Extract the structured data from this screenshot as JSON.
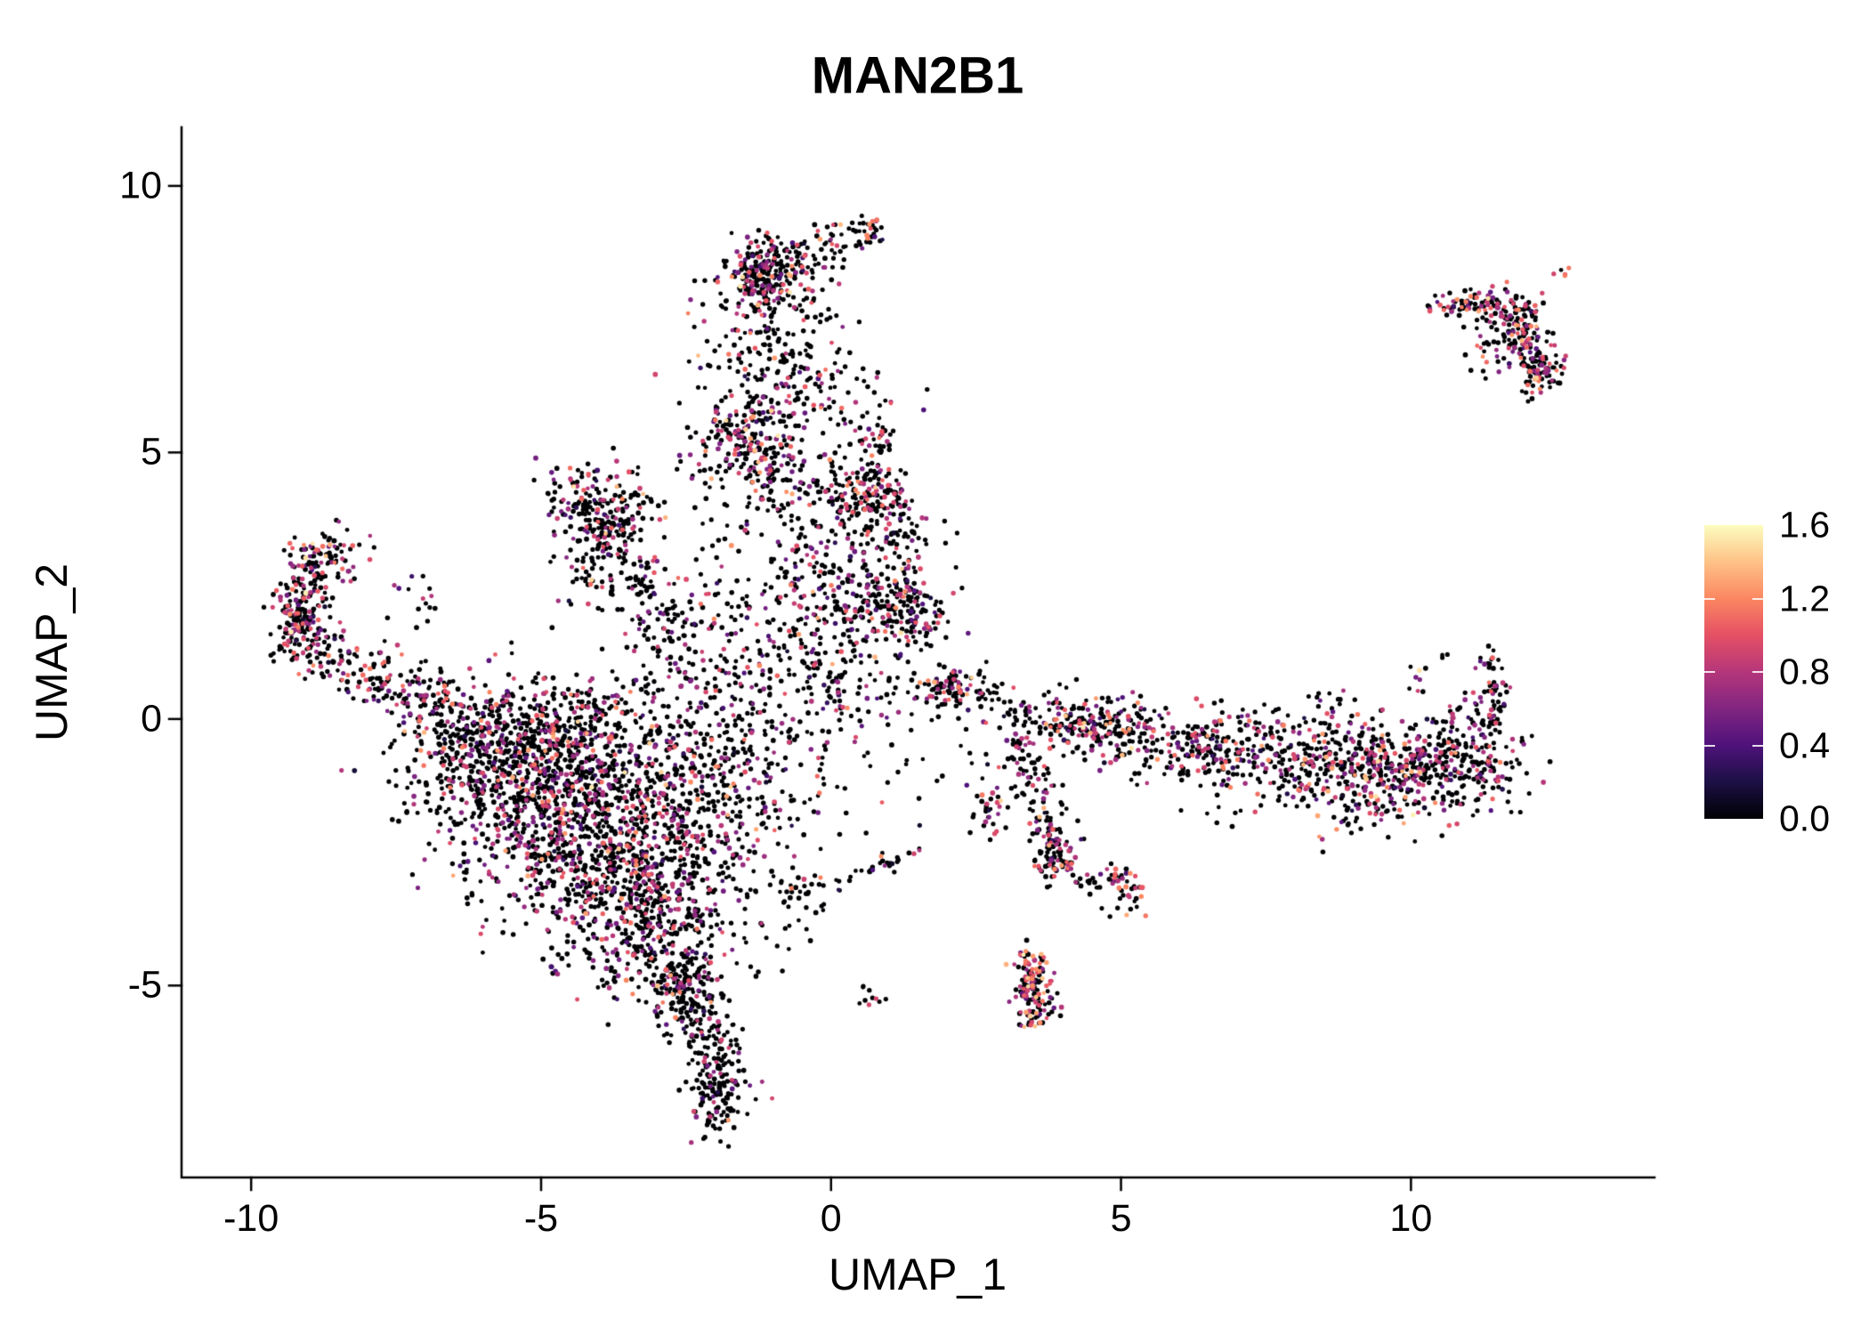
{
  "chart_data": {
    "type": "scatter",
    "title": "MAN2B1",
    "xlabel": "UMAP_1",
    "ylabel": "UMAP_2",
    "grid": false,
    "background": "#ffffff",
    "xlim": [
      -11.2,
      14.2
    ],
    "ylim": [
      -8.6,
      11.1
    ],
    "x_ticks": [
      "-10",
      "-5",
      "0",
      "5",
      "10"
    ],
    "y_ticks": [
      "-5",
      "0",
      "5",
      "10"
    ],
    "legend": {
      "position": "right",
      "tick_labels": [
        "0.0",
        "0.4",
        "0.8",
        "1.2",
        "1.6"
      ],
      "vmin": 0,
      "vmax": 1.6
    },
    "colormap_name": "magma",
    "colormap": [
      {
        "t": 0.0,
        "c": "#000004"
      },
      {
        "t": 0.125,
        "c": "#1c1044"
      },
      {
        "t": 0.25,
        "c": "#4f127b"
      },
      {
        "t": 0.375,
        "c": "#812581"
      },
      {
        "t": 0.5,
        "c": "#b5367a"
      },
      {
        "t": 0.625,
        "c": "#e55064"
      },
      {
        "t": 0.75,
        "c": "#fb8761"
      },
      {
        "t": 0.875,
        "c": "#fec287"
      },
      {
        "t": 1.0,
        "c": "#fcfdbf"
      }
    ],
    "point_radius": 2.6,
    "seed": 42,
    "default_expression": [
      0.3,
      0.74,
      0.27
    ],
    "clusters": [
      {
        "g": [
          -5.3,
          -1.0,
          1.0,
          0.8,
          650
        ]
      },
      {
        "g": [
          -4.3,
          -2.3,
          0.95,
          0.95,
          650
        ]
      },
      {
        "g": [
          -3.3,
          -3.7,
          0.65,
          0.75,
          380
        ]
      },
      {
        "g": [
          -6.2,
          -0.4,
          0.6,
          0.45,
          180
        ]
      },
      {
        "g": [
          -2.9,
          -1.3,
          0.75,
          0.8,
          280
        ]
      },
      {
        "g": [
          -4.6,
          0.0,
          0.9,
          0.4,
          200
        ]
      },
      {
        "l": [
          -2.7,
          -4.6,
          -2.0,
          -6.3,
          0.3,
          150
        ],
        "e": [
          0.22,
          0.7,
          0.25
        ]
      },
      {
        "g": [
          -1.95,
          -6.9,
          0.28,
          0.45,
          150
        ],
        "e": [
          0.22,
          0.75,
          0.25
        ]
      },
      {
        "g": [
          -2.5,
          -4.9,
          0.35,
          0.35,
          80
        ],
        "e": [
          0.25,
          0.7,
          0.25
        ]
      },
      {
        "l": [
          -6.6,
          0.3,
          -8.4,
          1.0,
          0.28,
          90
        ],
        "e": [
          0.35,
          0.8,
          0.3
        ]
      },
      {
        "l": [
          -8.4,
          1.0,
          -9.35,
          1.9,
          0.25,
          80
        ],
        "e": [
          0.35,
          0.8,
          0.3
        ]
      },
      {
        "l": [
          -9.4,
          1.9,
          -8.8,
          3.2,
          0.25,
          90
        ],
        "e": [
          0.35,
          0.8,
          0.3
        ]
      },
      {
        "g": [
          -9.2,
          1.6,
          0.25,
          0.3,
          60
        ],
        "e": [
          0.4,
          0.8,
          0.3
        ]
      },
      {
        "g": [
          -8.55,
          3.15,
          0.3,
          0.25,
          50
        ],
        "e": [
          0.35,
          0.8,
          0.3
        ]
      },
      {
        "g": [
          -7.3,
          0.6,
          0.5,
          0.35,
          40
        ],
        "e": [
          0.3,
          0.75,
          0.28
        ]
      },
      {
        "g": [
          -4.0,
          4.0,
          0.45,
          0.45,
          110
        ],
        "e": [
          0.3,
          0.78,
          0.3
        ]
      },
      {
        "l": [
          -4.55,
          4.5,
          -3.1,
          2.3,
          0.22,
          90
        ],
        "e": [
          0.3,
          0.78,
          0.3
        ]
      },
      {
        "l": [
          -4.4,
          2.5,
          -3.3,
          4.3,
          0.25,
          70
        ],
        "e": [
          0.3,
          0.78,
          0.3
        ]
      },
      {
        "g": [
          -3.6,
          3.2,
          0.7,
          0.7,
          70
        ],
        "e": [
          0.25,
          0.72,
          0.3
        ]
      },
      {
        "l": [
          -3.3,
          2.2,
          -2.5,
          1.2,
          0.3,
          50
        ],
        "e": [
          0.25,
          0.72,
          0.3
        ]
      },
      {
        "g": [
          -1.15,
          8.4,
          0.42,
          0.34,
          240
        ],
        "e": [
          0.35,
          0.8,
          0.3
        ]
      },
      {
        "l": [
          -0.4,
          9.0,
          0.75,
          9.2,
          0.15,
          30
        ],
        "e": [
          0.35,
          0.85,
          0.3
        ]
      },
      {
        "g": [
          0.72,
          9.15,
          0.15,
          0.12,
          20
        ],
        "e": [
          0.45,
          0.9,
          0.3
        ]
      },
      {
        "g": [
          -1.2,
          7.2,
          0.5,
          0.5,
          120
        ],
        "e": [
          0.3,
          0.76,
          0.3
        ]
      },
      {
        "g": [
          -1.45,
          5.3,
          0.5,
          0.55,
          210
        ],
        "e": [
          0.35,
          0.8,
          0.3
        ]
      },
      {
        "g": [
          -1.1,
          4.5,
          0.65,
          0.5,
          130
        ],
        "e": [
          0.3,
          0.76,
          0.3
        ]
      },
      {
        "g": [
          -0.6,
          6.3,
          0.4,
          0.5,
          60
        ],
        "e": [
          0.3,
          0.76,
          0.3
        ]
      },
      {
        "g": [
          0.55,
          4.15,
          0.42,
          0.38,
          170
        ],
        "e": [
          0.35,
          0.8,
          0.3
        ]
      },
      {
        "g": [
          0.8,
          1.95,
          0.55,
          0.33,
          150
        ],
        "e": [
          0.35,
          0.8,
          0.3
        ]
      },
      {
        "g": [
          0.1,
          2.9,
          0.75,
          0.6,
          130
        ],
        "e": [
          0.28,
          0.75,
          0.3
        ]
      },
      {
        "g": [
          -0.55,
          1.6,
          0.5,
          0.8,
          120
        ],
        "e": [
          0.28,
          0.72,
          0.3
        ]
      },
      {
        "g": [
          0.2,
          0.6,
          0.7,
          0.5,
          90
        ],
        "e": [
          0.25,
          0.72,
          0.3
        ]
      },
      {
        "g": [
          0.75,
          5.25,
          0.18,
          0.15,
          22
        ],
        "e": [
          0.5,
          0.95,
          0.3
        ]
      },
      {
        "g": [
          0.3,
          5.9,
          0.5,
          0.4,
          40
        ],
        "e": [
          0.3,
          0.75,
          0.3
        ]
      },
      {
        "g": [
          1.35,
          2.0,
          0.3,
          0.5,
          60
        ],
        "e": [
          0.3,
          0.75,
          0.3
        ]
      },
      {
        "g": [
          1.1,
          3.4,
          0.4,
          0.5,
          60
        ],
        "e": [
          0.3,
          0.75,
          0.3
        ]
      },
      {
        "g": [
          -2.1,
          0.3,
          0.85,
          0.8,
          200
        ],
        "e": [
          0.28,
          0.72,
          0.26
        ]
      },
      {
        "g": [
          -1.5,
          -1.6,
          0.7,
          0.95,
          160
        ],
        "e": [
          0.25,
          0.72,
          0.26
        ]
      },
      {
        "g": [
          -2.3,
          -3.1,
          0.5,
          0.7,
          100
        ],
        "e": [
          0.25,
          0.72,
          0.26
        ]
      },
      {
        "l": [
          1.75,
          0.7,
          3.3,
          0.15,
          0.22,
          80
        ],
        "e": [
          0.35,
          0.8,
          0.3
        ]
      },
      {
        "g": [
          2.05,
          0.6,
          0.2,
          0.15,
          40
        ],
        "e": [
          0.4,
          0.8,
          0.3
        ]
      },
      {
        "l": [
          3.3,
          0.15,
          5.2,
          -0.4,
          0.28,
          120
        ],
        "e": [
          0.35,
          0.8,
          0.3
        ]
      },
      {
        "g": [
          4.35,
          -0.15,
          0.3,
          0.22,
          60
        ],
        "e": [
          0.45,
          0.85,
          0.3
        ]
      },
      {
        "g": [
          5.05,
          -0.1,
          0.3,
          0.28,
          60
        ],
        "e": [
          0.4,
          0.8,
          0.3
        ]
      },
      {
        "l": [
          5.3,
          -0.5,
          8.3,
          -0.85,
          0.33,
          190
        ],
        "e": [
          0.35,
          0.8,
          0.3
        ]
      },
      {
        "g": [
          9.4,
          -0.9,
          0.85,
          0.42,
          420
        ],
        "e": [
          0.35,
          0.8,
          0.3
        ]
      },
      {
        "g": [
          10.9,
          -0.8,
          0.5,
          0.45,
          200
        ],
        "e": [
          0.35,
          0.8,
          0.3
        ]
      },
      {
        "l": [
          11.25,
          -0.35,
          11.45,
          0.75,
          0.14,
          55
        ],
        "e": [
          0.4,
          0.85,
          0.3
        ]
      },
      {
        "g": [
          11.4,
          0.95,
          0.12,
          0.15,
          15
        ],
        "e": [
          0.4,
          0.85,
          0.3
        ]
      },
      {
        "g": [
          7.6,
          -0.25,
          1.1,
          0.35,
          70
        ],
        "e": [
          0.25,
          0.72,
          0.3
        ]
      },
      {
        "g": [
          8.9,
          -1.75,
          0.9,
          0.3,
          50
        ],
        "e": [
          0.25,
          0.72,
          0.3
        ]
      },
      {
        "g": [
          6.3,
          -0.6,
          0.5,
          0.3,
          60
        ],
        "e": [
          0.35,
          0.8,
          0.3
        ]
      },
      {
        "g": [
          10.6,
          1.2,
          0.08,
          0.08,
          3
        ],
        "e": [
          0.3,
          0.8,
          0.3
        ]
      },
      {
        "g": [
          8.55,
          0.35,
          0.25,
          0.15,
          12
        ],
        "e": [
          0.3,
          0.8,
          0.3
        ]
      },
      {
        "l": [
          3.25,
          -0.3,
          3.75,
          -1.8,
          0.2,
          70
        ],
        "e": [
          0.35,
          0.8,
          0.3
        ]
      },
      {
        "l": [
          3.75,
          -1.8,
          3.95,
          -2.85,
          0.2,
          60
        ],
        "e": [
          0.4,
          0.85,
          0.3
        ]
      },
      {
        "g": [
          3.9,
          -2.6,
          0.22,
          0.3,
          50
        ],
        "e": [
          0.45,
          0.85,
          0.3
        ]
      },
      {
        "g": [
          5.05,
          -3.2,
          0.18,
          0.22,
          45
        ],
        "e": [
          0.5,
          0.9,
          0.3
        ]
      },
      {
        "l": [
          4.1,
          -2.95,
          4.85,
          -3.15,
          0.12,
          20
        ],
        "e": [
          0.3,
          0.8,
          0.3
        ]
      },
      {
        "g": [
          2.75,
          -1.6,
          0.15,
          0.3,
          30
        ],
        "e": [
          0.4,
          0.8,
          0.3
        ]
      },
      {
        "l": [
          -0.95,
          -3.35,
          1.55,
          -2.5,
          0.12,
          50
        ],
        "e": [
          0.3,
          0.75,
          0.3
        ]
      },
      {
        "g": [
          0.75,
          -5.2,
          0.12,
          0.1,
          10
        ],
        "e": [
          0.3,
          0.75,
          0.3
        ]
      },
      {
        "l": [
          3.38,
          -4.35,
          3.62,
          -5.75,
          0.16,
          120
        ],
        "e": [
          0.55,
          0.95,
          0.3
        ]
      },
      {
        "g": [
          3.5,
          -5.0,
          0.15,
          0.4,
          40
        ],
        "e": [
          0.55,
          0.95,
          0.3
        ]
      },
      {
        "g": [
          11.15,
          7.8,
          0.32,
          0.16,
          60
        ],
        "e": [
          0.4,
          0.85,
          0.3
        ]
      },
      {
        "g": [
          11.8,
          7.5,
          0.3,
          0.25,
          70
        ],
        "e": [
          0.4,
          0.85,
          0.3
        ]
      },
      {
        "l": [
          11.95,
          7.35,
          12.3,
          6.35,
          0.18,
          80
        ],
        "e": [
          0.45,
          0.85,
          0.3
        ]
      },
      {
        "g": [
          12.25,
          6.45,
          0.18,
          0.2,
          45
        ],
        "e": [
          0.45,
          0.85,
          0.3
        ]
      },
      {
        "g": [
          11.5,
          7.1,
          0.35,
          0.3,
          40
        ],
        "e": [
          0.35,
          0.8,
          0.3
        ]
      },
      {
        "g": [
          12.55,
          8.35,
          0.1,
          0.08,
          6
        ],
        "e": [
          0.6,
          1.1,
          0.2
        ]
      },
      {
        "g": [
          10.35,
          7.8,
          0.12,
          0.08,
          5
        ],
        "e": [
          0.3,
          0.8,
          0.3
        ]
      },
      {
        "l": [
          10.55,
          7.65,
          11.0,
          7.8,
          0.1,
          15
        ],
        "e": [
          0.35,
          0.8,
          0.3
        ]
      },
      {
        "g": [
          -0.3,
          -1.2,
          0.9,
          0.9,
          35
        ],
        "e": [
          0.22,
          0.7,
          0.3
        ]
      },
      {
        "g": [
          2.2,
          -0.9,
          0.6,
          0.5,
          20
        ],
        "e": [
          0.22,
          0.7,
          0.3
        ]
      },
      {
        "g": [
          1.0,
          -0.2,
          0.5,
          0.4,
          15
        ],
        "e": [
          0.22,
          0.7,
          0.3
        ]
      },
      {
        "g": [
          -7.2,
          2.2,
          0.3,
          0.4,
          15
        ],
        "e": [
          0.3,
          0.75,
          0.3
        ]
      },
      {
        "g": [
          -8.9,
          2.5,
          0.25,
          0.35,
          40
        ],
        "e": [
          0.35,
          0.8,
          0.3
        ]
      },
      {
        "g": [
          0.0,
          7.9,
          0.3,
          0.6,
          25
        ],
        "e": [
          0.3,
          0.75,
          0.3
        ]
      },
      {
        "g": [
          -0.5,
          8.6,
          0.3,
          0.3,
          30
        ],
        "e": [
          0.35,
          0.8,
          0.3
        ]
      },
      {
        "g": [
          -2.0,
          2.2,
          0.6,
          0.8,
          60
        ],
        "e": [
          0.25,
          0.72,
          0.3
        ]
      },
      {
        "g": [
          -0.9,
          -4.2,
          0.4,
          0.4,
          15
        ],
        "e": [
          0.22,
          0.7,
          0.3
        ]
      },
      {
        "g": [
          10.1,
          0.75,
          0.2,
          0.15,
          8
        ],
        "e": [
          0.3,
          0.8,
          0.3
        ]
      }
    ]
  }
}
